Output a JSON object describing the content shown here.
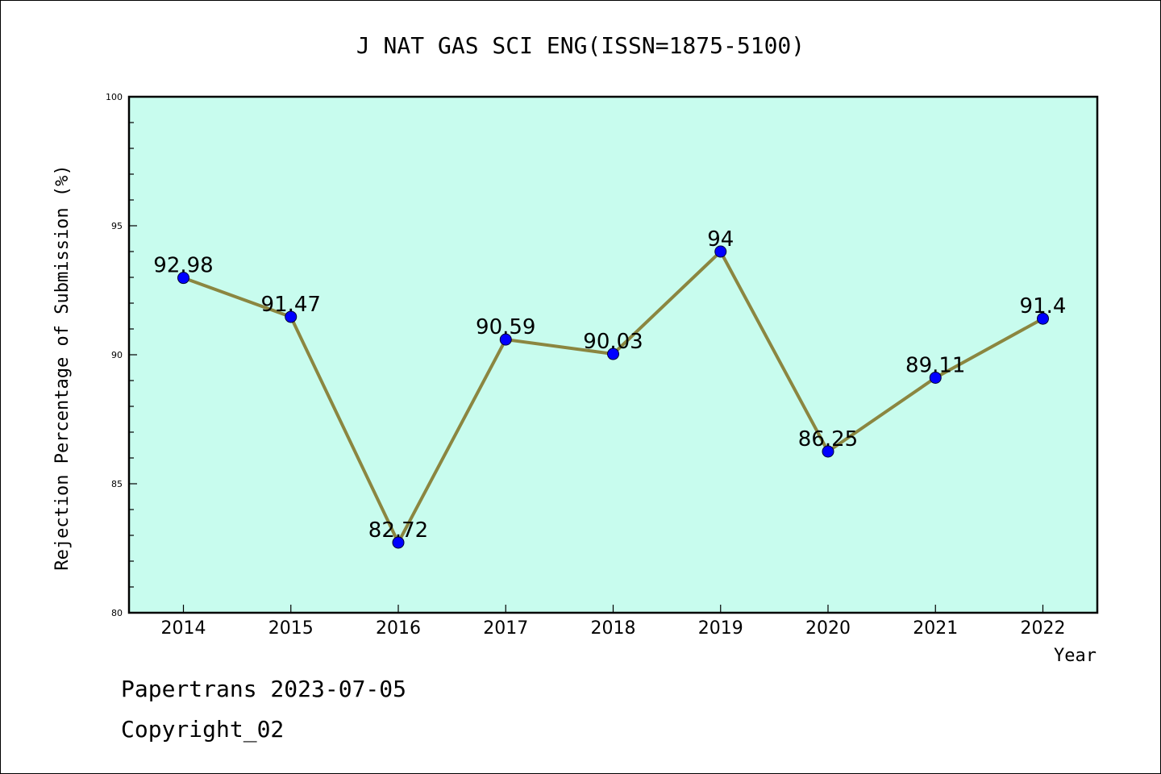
{
  "chart_data": {
    "type": "line",
    "title": "J NAT GAS SCI ENG(ISSN=1875-5100)",
    "xlabel": "Year",
    "ylabel": "Rejection Percentage of Submission (%)",
    "categories": [
      "2014",
      "2015",
      "2016",
      "2017",
      "2018",
      "2019",
      "2020",
      "2021",
      "2022"
    ],
    "values": [
      92.98,
      91.47,
      82.72,
      90.59,
      90.03,
      94,
      86.25,
      89.11,
      91.4
    ],
    "data_labels": [
      "92.98",
      "91.47",
      "82.72",
      "90.59",
      "90.03",
      "94",
      "86.25",
      "89.11",
      "91.4"
    ],
    "ylim": [
      80,
      100
    ],
    "yticks": [
      "80",
      "85",
      "90",
      "95",
      "100"
    ],
    "grid": false,
    "legend": "none",
    "colors": {
      "plot_background": "#c8fcee",
      "line": "#8b8640",
      "marker": "#0000ff"
    }
  },
  "footer": {
    "line1": "Papertrans 2023-07-05",
    "line2": "Copyright_02"
  }
}
